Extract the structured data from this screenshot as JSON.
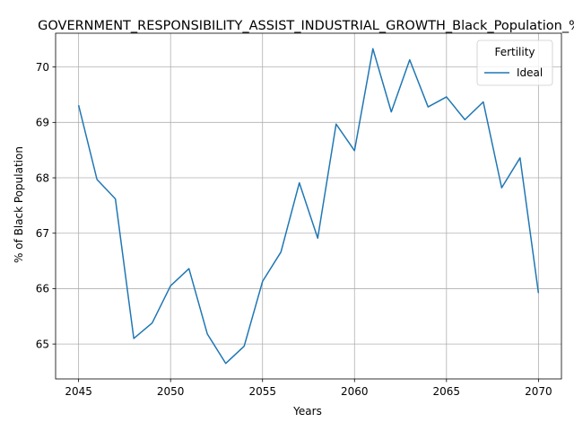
{
  "chart_data": {
    "type": "line",
    "title": "GOVERNMENT_RESPONSIBILITY_ASSIST_INDUSTRIAL_GROWTH_Black_Population_%",
    "xlabel": "Years",
    "ylabel": "% of Black Population",
    "xlim": [
      2043.75,
      2071.25
    ],
    "ylim": [
      64.37,
      70.61
    ],
    "xticks": [
      2045,
      2050,
      2055,
      2060,
      2065,
      2070
    ],
    "yticks": [
      65,
      66,
      67,
      68,
      69,
      70
    ],
    "grid": true,
    "legend": {
      "title": "Fertility",
      "position": "top-right"
    },
    "series": [
      {
        "name": "Ideal",
        "color": "#1f77b4",
        "x": [
          2045,
          2046,
          2047,
          2048,
          2049,
          2050,
          2051,
          2052,
          2053,
          2054,
          2055,
          2056,
          2057,
          2058,
          2059,
          2060,
          2061,
          2062,
          2063,
          2064,
          2065,
          2066,
          2067,
          2068,
          2069,
          2070
        ],
        "y": [
          69.31,
          67.97,
          67.62,
          65.1,
          65.38,
          66.05,
          66.36,
          65.18,
          64.65,
          64.96,
          66.13,
          66.66,
          67.91,
          66.91,
          68.97,
          68.49,
          70.33,
          69.19,
          70.13,
          69.28,
          69.46,
          69.05,
          69.37,
          67.82,
          68.36,
          65.92
        ]
      }
    ]
  }
}
